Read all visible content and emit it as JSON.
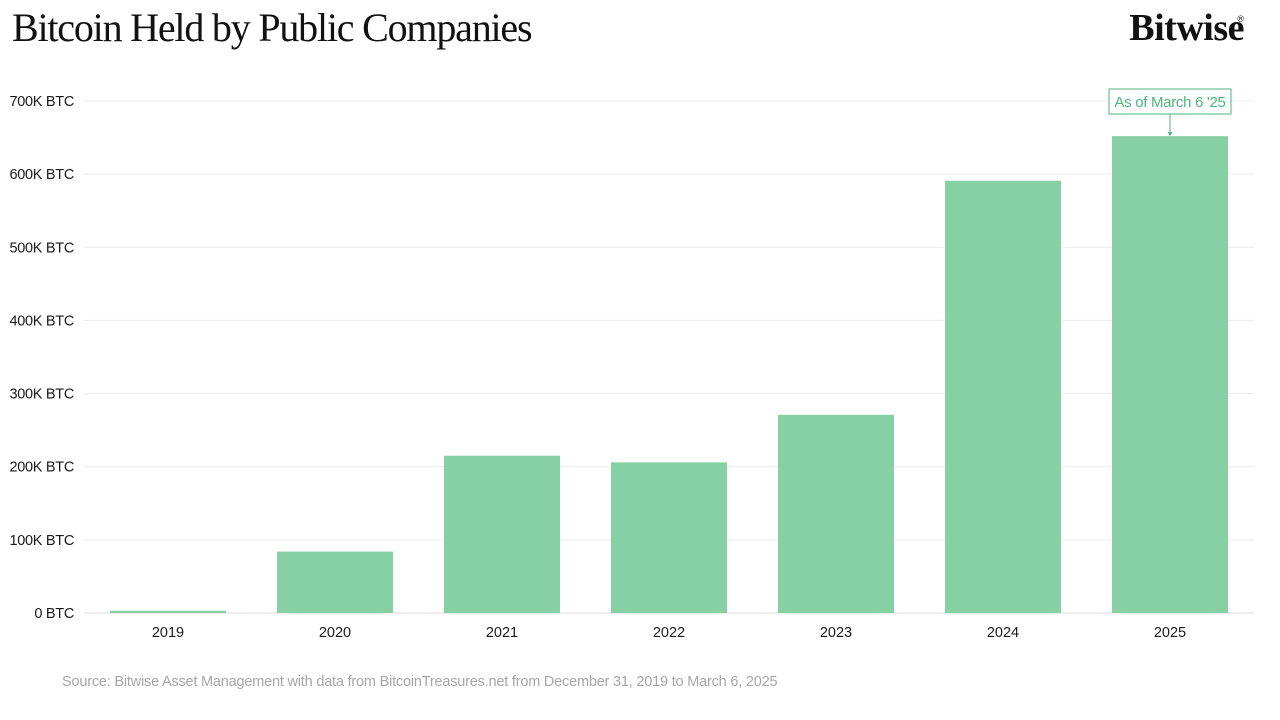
{
  "header": {
    "title": "Bitcoin Held by Public Companies",
    "brand": "Bitwise",
    "brand_mark": "®"
  },
  "chart_data": {
    "type": "bar",
    "title": "Bitcoin Held by Public Companies",
    "xlabel": "",
    "ylabel": "",
    "categories": [
      "2019",
      "2020",
      "2021",
      "2022",
      "2023",
      "2024",
      "2025"
    ],
    "values": [
      3000,
      84000,
      215000,
      206000,
      271000,
      591000,
      652000
    ],
    "unit": "BTC",
    "ylim": [
      0,
      700000
    ],
    "yticks": [
      0,
      100000,
      200000,
      300000,
      400000,
      500000,
      600000,
      700000
    ],
    "ytick_labels": [
      "0 BTC",
      "100K BTC",
      "200K BTC",
      "300K BTC",
      "400K BTC",
      "500K BTC",
      "600K BTC",
      "700K BTC"
    ],
    "grid": true,
    "legend": "none",
    "bar_color": "#86d0a4",
    "annotation": {
      "category": "2025",
      "text": "As of March 6 '25",
      "color": "#4cb57a"
    }
  },
  "footer": {
    "source": "Source: Bitwise Asset Management with data from BitcoinTreasures.net from December 31, 2019 to March 6, 2025"
  }
}
